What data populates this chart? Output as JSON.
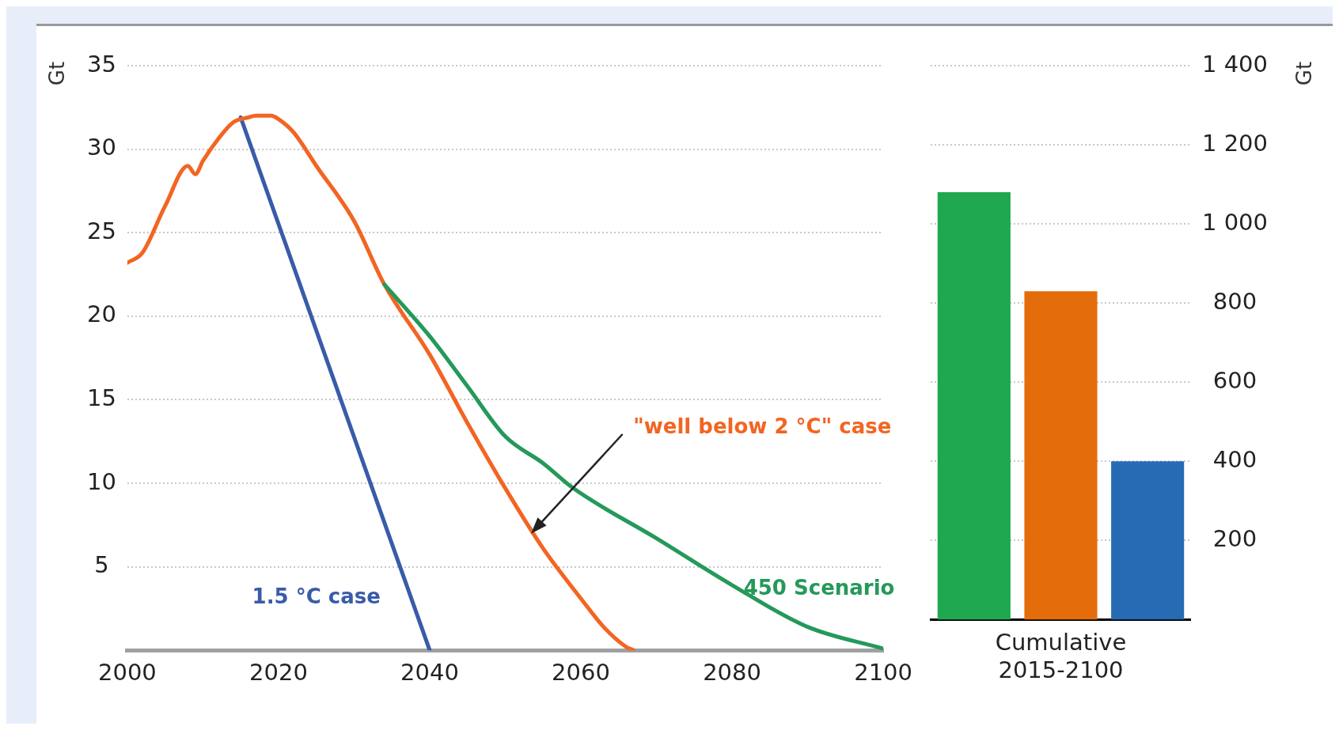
{
  "chart_data": [
    {
      "type": "line",
      "ylabel": "Gt",
      "xlim": [
        2000,
        2100
      ],
      "xticks": [
        2000,
        2020,
        2040,
        2060,
        2080,
        2100
      ],
      "ylim": [
        0,
        35
      ],
      "yticks": [
        5,
        10,
        15,
        20,
        25,
        30,
        35
      ],
      "grid": "y",
      "legend": false,
      "marker": "none",
      "series": [
        {
          "name": "450 Scenario",
          "color": "#25995a",
          "x": [
            2034,
            2040,
            2045,
            2050,
            2055,
            2059,
            2070,
            2080,
            2090,
            2100
          ],
          "values": [
            21.9,
            18.8,
            15.8,
            12.8,
            11.2,
            9.7,
            6.7,
            3.9,
            1.4,
            0.1
          ]
        },
        {
          "name": "\"well below 2 °C\" case",
          "color": "#f26522",
          "x": [
            2000,
            2002,
            2005,
            2008,
            2009,
            2010,
            2012,
            2014,
            2016,
            2017,
            2019,
            2020,
            2022,
            2025,
            2030,
            2034,
            2040,
            2045,
            2050,
            2055,
            2060,
            2063,
            2066,
            2067
          ],
          "values": [
            23.2,
            23.8,
            26.6,
            29.0,
            28.5,
            29.3,
            30.6,
            31.6,
            31.9,
            32.0,
            32.0,
            31.8,
            31.0,
            29.0,
            25.7,
            21.9,
            17.7,
            13.6,
            9.7,
            6.1,
            3.1,
            1.4,
            0.2,
            0
          ]
        },
        {
          "name": "1.5 °C case",
          "color": "#3a5ba9",
          "x": [
            2015,
            2040
          ],
          "values": [
            31.9,
            0
          ]
        }
      ]
    },
    {
      "type": "bar",
      "tick_labels": "y",
      "ylabel": "Gt",
      "xlabel": "Cumulative 2015-2100",
      "categories": [
        null,
        null,
        null
      ],
      "ylim": [
        0,
        1400
      ],
      "yticks": [
        200,
        400,
        600,
        800,
        {
          "value": 1000,
          "label": "1 000"
        },
        {
          "value": 1200,
          "label": "1 200"
        },
        {
          "value": 1400,
          "label": "1 400"
        }
      ],
      "grid": "y",
      "legend": false,
      "series": [
        {
          "colors": [
            "#1fa84f",
            "#e46c0a",
            "#266bb4"
          ],
          "values": [
            1080,
            830,
            400
          ]
        }
      ]
    }
  ]
}
